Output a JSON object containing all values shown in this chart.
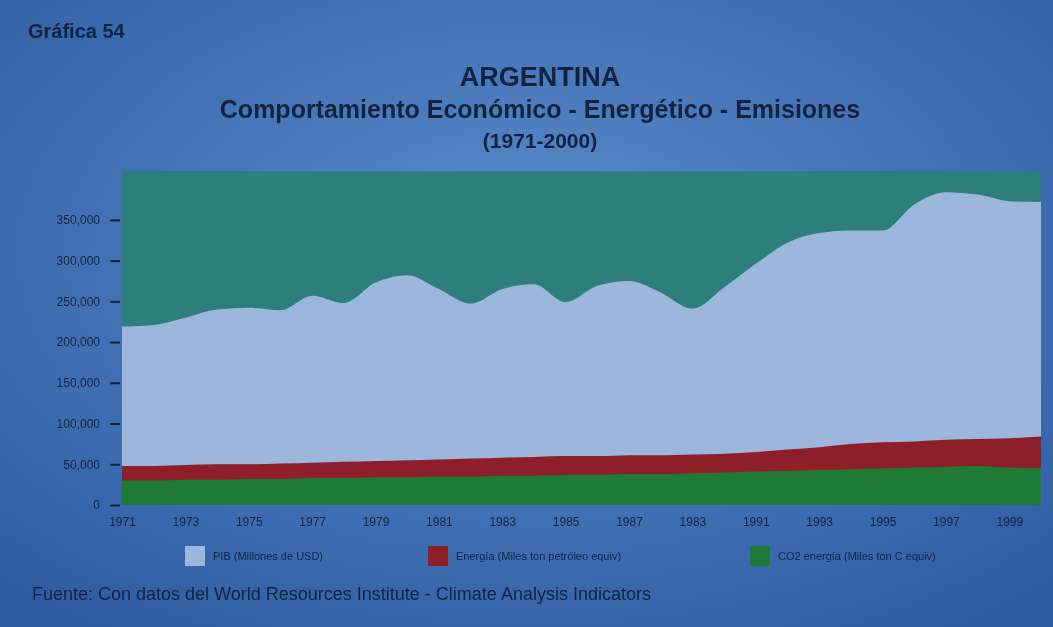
{
  "chart_data": {
    "type": "area",
    "title": "ARGENTINA",
    "subtitle": "Comportamiento Económico - Energético - Emisiones\n(1971-2000)",
    "annotations": [
      "Gráfica 54",
      "Fuente: Con datos del World Resources Institute - Climate Analysis Indicators"
    ],
    "categories": [
      "1971",
      null,
      "1973",
      null,
      "1975",
      null,
      "1977",
      null,
      "1979",
      null,
      "1981",
      null,
      "1983",
      null,
      "1985",
      null,
      "1987",
      null,
      "1983",
      null,
      "1991",
      null,
      "1993",
      null,
      "1995",
      null,
      "1997",
      null,
      "1999",
      null
    ],
    "series": [
      {
        "name": "PIB (Millones de USD)",
        "color": "#9db7dc",
        "values": [
          219000,
          221000,
          230000,
          240000,
          242000,
          239000,
          257000,
          248000,
          273000,
          282000,
          265000,
          247000,
          265000,
          271000,
          249000,
          269000,
          275000,
          261000,
          241000,
          267000,
          296000,
          322000,
          334000,
          337000,
          337000,
          369000,
          384000,
          381000,
          373000,
          372000
        ]
      },
      {
        "name": "Energía (Miles ton petróleo equiv)",
        "color": "#8e1f2a",
        "values": [
          48000,
          48000,
          49000,
          50000,
          50000,
          51000,
          52000,
          53000,
          54000,
          55000,
          56000,
          57000,
          58000,
          59000,
          60000,
          60000,
          61000,
          61000,
          62000,
          63000,
          65000,
          68000,
          71000,
          75000,
          77000,
          78000,
          80000,
          81000,
          82000,
          84000
        ]
      },
      {
        "name": "CO2 energía (Miles ton C equiv)",
        "color": "#1f7a36",
        "values": [
          30000,
          30000,
          31000,
          31000,
          32000,
          32000,
          33000,
          33000,
          34000,
          34000,
          35000,
          35000,
          36000,
          36000,
          37000,
          37000,
          38000,
          38000,
          39000,
          40000,
          41000,
          42000,
          43000,
          44000,
          45000,
          46000,
          47000,
          48000,
          46000,
          45000
        ]
      }
    ],
    "ylim": [
      0,
      410000
    ],
    "yticks": [
      0,
      {
        "value": 50000,
        "label": "50,000"
      },
      {
        "value": 100000,
        "label": "100,000"
      },
      {
        "value": 150000,
        "label": "150,000"
      },
      {
        "value": 200000,
        "label": "200,000"
      },
      {
        "value": 250000,
        "label": "250,000"
      },
      {
        "value": 300000,
        "label": "300,000"
      },
      {
        "value": 350000,
        "label": "350,000"
      }
    ],
    "grid": false,
    "legend": "bottom"
  }
}
